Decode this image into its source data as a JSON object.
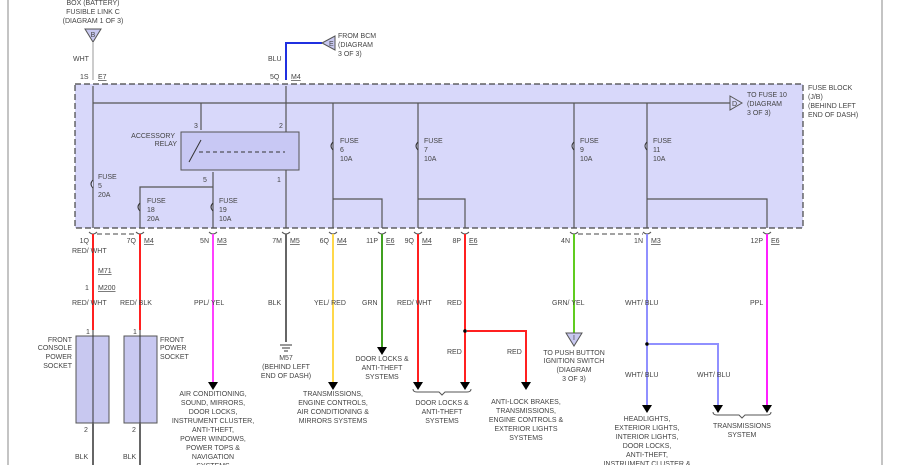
{
  "top": {
    "battery_source": [
      "BOX (BATTERY)",
      "FUSIBLE LINK C",
      "(DIAGRAM 1 OF 3)"
    ],
    "battery_connector": "B",
    "wht": "WHT",
    "bcm_source": [
      "FROM BCM",
      "(DIAGRAM",
      "3 OF 3)"
    ],
    "bcm_connector": "E",
    "blu": "BLU",
    "pin_1s": "1S",
    "conn_e7": "E7",
    "pin_5q": "5Q",
    "conn_m4_top": "M4"
  },
  "fuse_block": {
    "label": [
      "FUSE BLOCK",
      "(J/B)",
      "(BEHIND LEFT",
      "END OF DASH)"
    ],
    "to_fuse10": [
      "TO FUSE 10",
      "(DIAGRAM",
      "3 OF 3)"
    ],
    "to_fuse10_connector": "D",
    "relay": [
      "ACCESSORY",
      "RELAY"
    ],
    "relay_pins": [
      "3",
      "2",
      "5",
      "1"
    ],
    "fuses": [
      {
        "label": "FUSE",
        "num": "5",
        "amps": "20A"
      },
      {
        "label": "FUSE",
        "num": "18",
        "amps": "20A"
      },
      {
        "label": "FUSE",
        "num": "19",
        "amps": "10A"
      },
      {
        "label": "FUSE",
        "num": "6",
        "amps": "10A"
      },
      {
        "label": "FUSE",
        "num": "7",
        "amps": "10A"
      },
      {
        "label": "FUSE",
        "num": "9",
        "amps": "10A"
      },
      {
        "label": "FUSE",
        "num": "11",
        "amps": "10A"
      }
    ]
  },
  "outputs": [
    {
      "pin": "1Q",
      "conn": "",
      "color": "RED/ WHT",
      "hex": "#ff2020"
    },
    {
      "pin": "7Q",
      "conn": "M4",
      "color": "RED/ BLK",
      "hex": "#ff2020"
    },
    {
      "pin": "5N",
      "conn": "M3",
      "color": "PPL/ YEL",
      "hex": "#ff40ff"
    },
    {
      "pin": "7M",
      "conn": "M5",
      "color": "BLK",
      "hex": "#666666"
    },
    {
      "pin": "6Q",
      "conn": "M4",
      "color": "YEL/ RED",
      "hex": "#ffd84a"
    },
    {
      "pin": "11P",
      "conn": "E6",
      "color": "GRN",
      "hex": "#40a020"
    },
    {
      "pin": "9Q",
      "conn": "M4",
      "color": "RED/ WHT",
      "hex": "#ff2020"
    },
    {
      "pin": "8P",
      "conn": "E6",
      "color": "RED",
      "hex": "#ff2020"
    },
    {
      "pin": "4N",
      "conn": "",
      "color": "GRN/ YEL",
      "hex": "#60cc20"
    },
    {
      "pin": "1N",
      "conn": "M3",
      "color": "WHT/ BLU",
      "hex": "#9090ff"
    },
    {
      "pin": "12P",
      "conn": "E6",
      "color": "PPL",
      "hex": "#ff20ff"
    }
  ],
  "lower": {
    "m71": "M71",
    "m200": "M200",
    "pin1": "1",
    "red_wht": "RED/ WHT",
    "red_blk": "RED/ BLK",
    "socket_pins": [
      "1",
      "2"
    ],
    "front_console_socket": [
      "FRONT",
      "CONSOLE",
      "POWER",
      "SOCKET"
    ],
    "front_socket": [
      "FRONT",
      "POWER",
      "SOCKET"
    ],
    "blk": "BLK",
    "ground": [
      "M57",
      "(BEHIND LEFT",
      "END OF DASH)"
    ],
    "red": "RED",
    "wht_blu": "WHT/ BLU",
    "ign_connector": "I",
    "ignition": [
      "TO PUSH BUTTON",
      "IGNITION SWITCH",
      "(DIAGRAM",
      "3 OF 3)"
    ],
    "dest_ac": [
      "AIR CONDITIONING,",
      "SOUND, MIRRORS,",
      "DOOR LOCKS,",
      "INSTRUMENT CLUSTER,",
      "ANTI-THEFT,",
      "POWER WINDOWS,",
      "POWER TOPS &",
      "NAVIGATION",
      "SYSTEMS"
    ],
    "dest_trans": [
      "TRANSMISSIONS,",
      "ENGINE CONTROLS,",
      "AIR CONDITIONING &",
      "MIRRORS SYSTEMS"
    ],
    "dest_door1": [
      "DOOR LOCKS &",
      "ANTI-THEFT",
      "SYSTEMS"
    ],
    "dest_door2": [
      "DOOR LOCKS &",
      "ANTI-THEFT",
      "SYSTEMS"
    ],
    "dest_abs": [
      "ANTI-LOCK BRAKES,",
      "TRANSMISSIONS,",
      "ENGINE CONTROLS &",
      "EXTERIOR LIGHTS",
      "SYSTEMS"
    ],
    "dest_lights": [
      "HEADLIGHTS,",
      "EXTERIOR LIGHTS,",
      "INTERIOR LIGHTS,",
      "DOOR LOCKS,",
      "ANTI-THEFT,",
      "INSTRUMENT CLUSTER &"
    ],
    "dest_transsys": [
      "TRANSMISSIONS",
      "SYSTEM"
    ]
  }
}
